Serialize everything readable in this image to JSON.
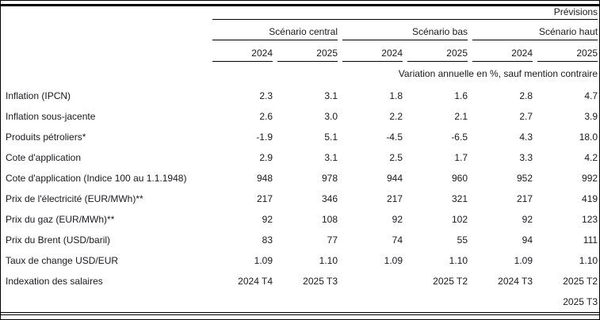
{
  "header": {
    "previsions_label": "Prévisions",
    "note": "Variation annuelle en %, sauf mention contraire",
    "groups": [
      {
        "label": "Scénario central",
        "years": [
          "2024",
          "2025"
        ]
      },
      {
        "label": "Scénario bas",
        "years": [
          "2024",
          "2025"
        ]
      },
      {
        "label": "Scénario haut",
        "years": [
          "2024",
          "2025"
        ]
      }
    ]
  },
  "rows": [
    {
      "label": "Inflation (IPCN)",
      "values": [
        "2.3",
        "3.1",
        "1.8",
        "1.6",
        "2.8",
        "4.7"
      ]
    },
    {
      "label": "Inflation sous-jacente",
      "values": [
        "2.6",
        "3.0",
        "2.2",
        "2.1",
        "2.7",
        "3.9"
      ]
    },
    {
      "label": "Produits pétroliers*",
      "values": [
        "-1.9",
        "5.1",
        "-4.5",
        "-6.5",
        "4.3",
        "18.0"
      ]
    },
    {
      "label": "Cote d'application",
      "values": [
        "2.9",
        "3.1",
        "2.5",
        "1.7",
        "3.3",
        "4.2"
      ]
    },
    {
      "label": "Cote d'application (Indice 100 au 1.1.1948)",
      "values": [
        "948",
        "978",
        "944",
        "960",
        "952",
        "992"
      ]
    },
    {
      "label": "Prix de l'électricité (EUR/MWh)**",
      "values": [
        "217",
        "346",
        "217",
        "321",
        "217",
        "419"
      ]
    },
    {
      "label": "Prix du gaz (EUR/MWh)**",
      "values": [
        "92",
        "108",
        "92",
        "102",
        "92",
        "123"
      ]
    },
    {
      "label": "Prix du Brent (USD/baril)",
      "values": [
        "83",
        "77",
        "74",
        "55",
        "94",
        "111"
      ]
    },
    {
      "label": "Taux de change USD/EUR",
      "values": [
        "1.09",
        "1.10",
        "1.09",
        "1.10",
        "1.09",
        "1.10"
      ]
    },
    {
      "label": "Indexation des salaires",
      "values": [
        "2024 T4",
        "2025 T3",
        "",
        "2025 T2",
        "2024 T3",
        "2025 T2"
      ]
    },
    {
      "label": "",
      "values": [
        "",
        "",
        "",
        "",
        "",
        "2025 T3"
      ]
    }
  ]
}
